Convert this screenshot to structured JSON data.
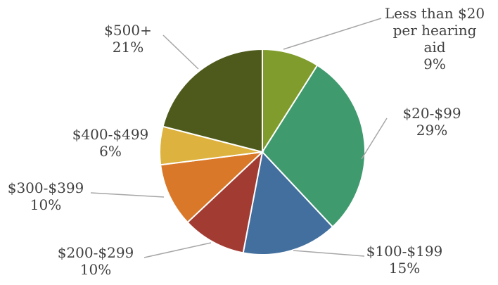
{
  "chart_data": {
    "type": "pie",
    "title": "",
    "start_angle_deg": 0,
    "direction": "clockwise",
    "legend": "none",
    "slices": [
      {
        "label": "Less than $20 per hearing aid",
        "label_lines": [
          "Less than $20",
          "per hearing",
          "aid"
        ],
        "value": 9,
        "pct_text": "9%",
        "color": "#7f9c2c"
      },
      {
        "label": "$20-$99",
        "label_lines": [
          "$20-$99"
        ],
        "value": 29,
        "pct_text": "29%",
        "color": "#3f9a6e"
      },
      {
        "label": "$100-$199",
        "label_lines": [
          "$100-$199"
        ],
        "value": 15,
        "pct_text": "15%",
        "color": "#426f9e"
      },
      {
        "label": "$200-$299",
        "label_lines": [
          "$200-$299"
        ],
        "value": 10,
        "pct_text": "10%",
        "color": "#a23c33"
      },
      {
        "label": "$300-$399",
        "label_lines": [
          "$300-$399"
        ],
        "value": 10,
        "pct_text": "10%",
        "color": "#d97829"
      },
      {
        "label": "$400-$499",
        "label_lines": [
          "$400-$499"
        ],
        "value": 6,
        "pct_text": "6%",
        "color": "#ddb23e"
      },
      {
        "label": "$500+",
        "label_lines": [
          "$500+"
        ],
        "value": 21,
        "pct_text": "21%",
        "color": "#4d5a1b"
      }
    ]
  }
}
